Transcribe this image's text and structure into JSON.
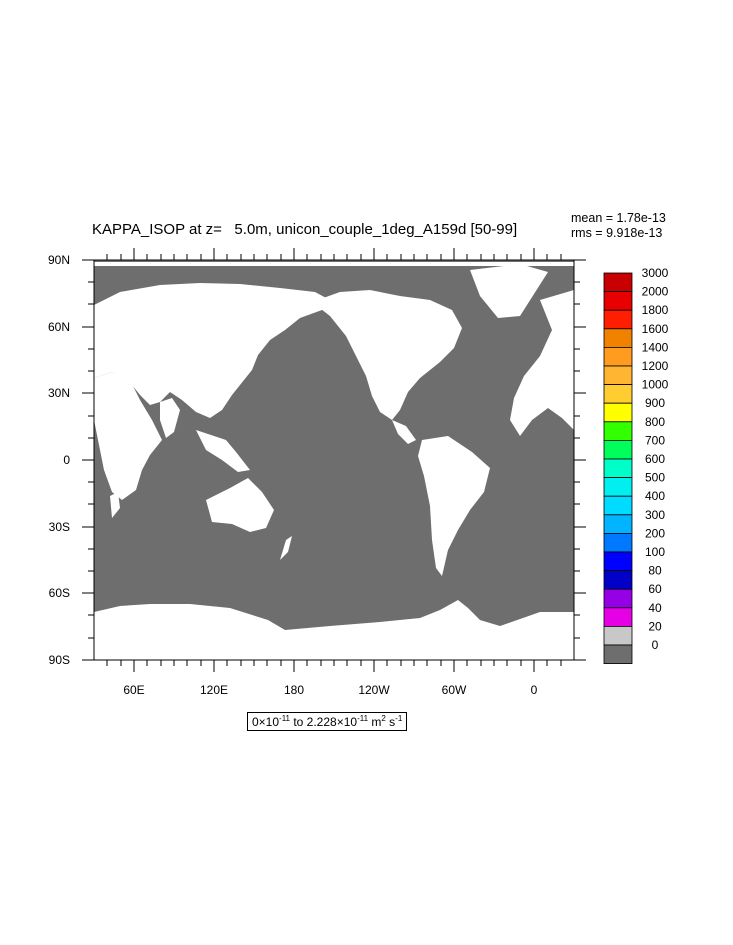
{
  "plot": {
    "title": "KAPPA_ISOP at z=   5.0m, unicon_couple_1deg_A159d [50-99]",
    "stats": {
      "mean": "mean = 1.78e-13",
      "rms": "rms = 9.918e-13"
    },
    "lat_ticks": [
      "90N",
      "60N",
      "30N",
      "0",
      "30S",
      "60S",
      "90S"
    ],
    "lon_ticks": [
      "60E",
      "120E",
      "180",
      "120W",
      "60W",
      "0"
    ],
    "range": {
      "lo_base": "0×10",
      "lo_exp": "-11",
      "mid": " to 2.228×10",
      "hi_exp": "-11",
      "unit": " m",
      "unit_exp1": "2",
      "unit_s": " s",
      "unit_exp2": "-1"
    },
    "colors": {
      "ocean": "#6e6e6e",
      "land": "#ffffff"
    }
  },
  "colorbar": {
    "labels": [
      "3000",
      "2000",
      "1800",
      "1600",
      "1400",
      "1200",
      "1000",
      "900",
      "800",
      "700",
      "600",
      "500",
      "400",
      "300",
      "200",
      "100",
      "80",
      "60",
      "40",
      "20",
      "0"
    ],
    "colors": [
      "#c80000",
      "#e60000",
      "#ff1e00",
      "#f08200",
      "#ff9b1e",
      "#ffb432",
      "#ffcd32",
      "#ffff00",
      "#32ff00",
      "#00ff5a",
      "#00ffc8",
      "#00f0f0",
      "#00dcff",
      "#00b4ff",
      "#0078ff",
      "#0000ff",
      "#0000c8",
      "#9600e6",
      "#e600e6",
      "#c8c8c8",
      "#6e6e6e"
    ]
  }
}
